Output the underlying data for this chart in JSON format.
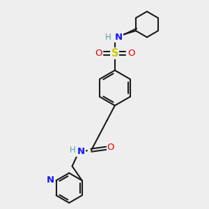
{
  "bg_color": "#eeeeee",
  "bond_color": "#1a1a1a",
  "N_color": "#1414ff",
  "O_color": "#dd0000",
  "S_color": "#cccc00",
  "H_color": "#5f9ea0",
  "line_width": 1.5,
  "figsize": [
    3.0,
    3.0
  ],
  "dpi": 100,
  "xlim": [
    0,
    10
  ],
  "ylim": [
    0,
    10
  ]
}
